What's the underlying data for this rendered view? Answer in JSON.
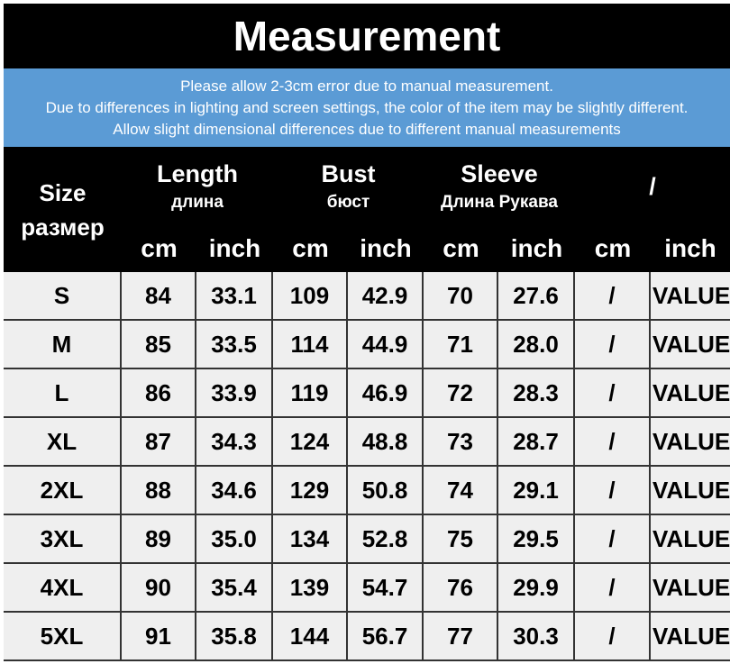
{
  "header": {
    "title": "Measurement",
    "notes": [
      "Please allow 2-3cm error due to manual measurement.",
      "Due to differences in lighting and screen settings, the color of the item may be slightly different.",
      "Allow slight dimensional differences due to different manual measurements"
    ]
  },
  "table": {
    "size_header": [
      "Size",
      "размер"
    ],
    "groups": [
      {
        "title": "Length",
        "subtitle": "длина"
      },
      {
        "title": "Bust",
        "subtitle": "бюст"
      },
      {
        "title": "Sleeve",
        "subtitle": "Длина Рукава"
      },
      {
        "title": "/"
      }
    ],
    "units": [
      "cm",
      "inch",
      "cm",
      "inch",
      "cm",
      "inch",
      "cm",
      "inch"
    ],
    "rows": [
      [
        "S",
        "84",
        "33.1",
        "109",
        "42.9",
        "70",
        "27.6",
        "/",
        "VALUE"
      ],
      [
        "M",
        "85",
        "33.5",
        "114",
        "44.9",
        "71",
        "28.0",
        "/",
        "VALUE"
      ],
      [
        "L",
        "86",
        "33.9",
        "119",
        "46.9",
        "72",
        "28.3",
        "/",
        "VALUE"
      ],
      [
        "XL",
        "87",
        "34.3",
        "124",
        "48.8",
        "73",
        "28.7",
        "/",
        "VALUE"
      ],
      [
        "2XL",
        "88",
        "34.6",
        "129",
        "50.8",
        "74",
        "29.1",
        "/",
        "VALUE"
      ],
      [
        "3XL",
        "89",
        "35.0",
        "134",
        "52.8",
        "75",
        "29.5",
        "/",
        "VALUE"
      ],
      [
        "4XL",
        "90",
        "35.4",
        "139",
        "54.7",
        "76",
        "29.9",
        "/",
        "VALUE"
      ],
      [
        "5XL",
        "91",
        "35.8",
        "144",
        "56.7",
        "77",
        "30.3",
        "/",
        "VALUE"
      ]
    ]
  }
}
